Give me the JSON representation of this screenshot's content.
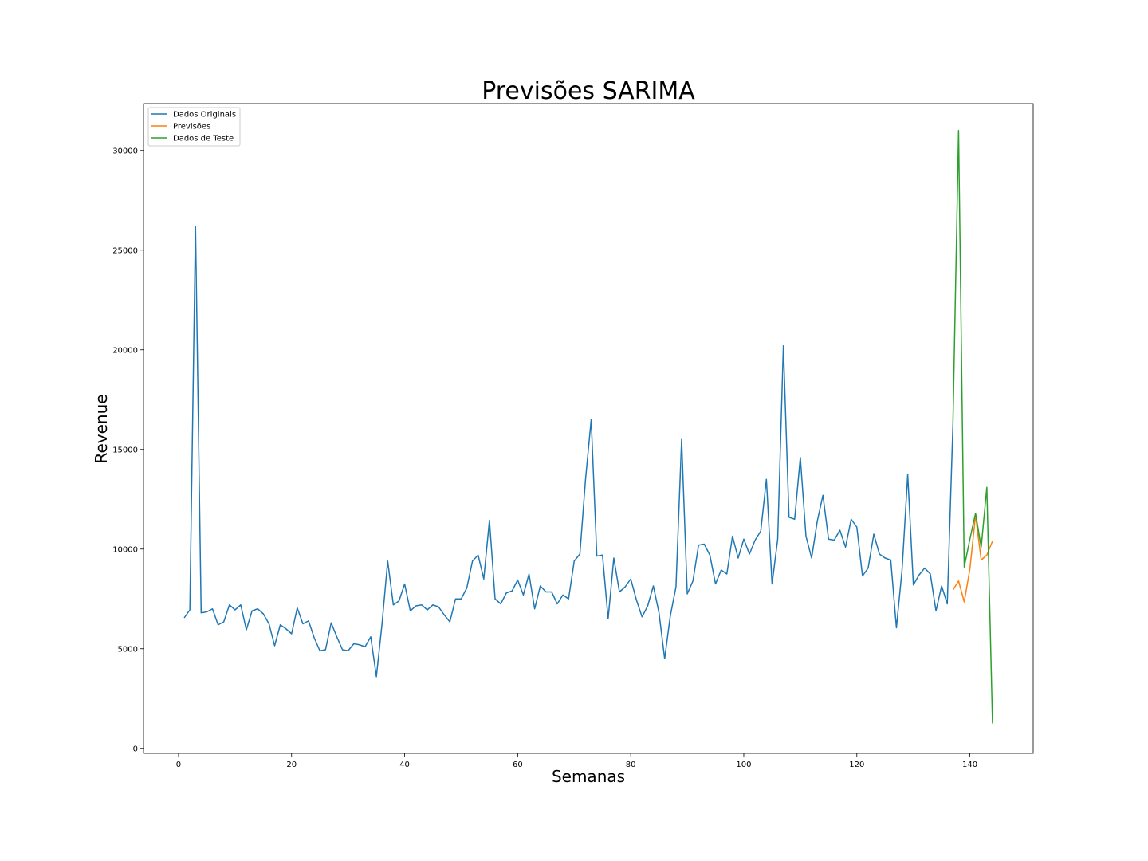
{
  "chart_data": {
    "type": "line",
    "title": "Previsões SARIMA",
    "xlabel": "Semanas",
    "ylabel": "Revenue",
    "xlim": [
      -6.2,
      151.2
    ],
    "ylim": [
      -250,
      32350
    ],
    "xticks": [
      0,
      20,
      40,
      60,
      80,
      100,
      120,
      140
    ],
    "yticks": [
      0,
      5000,
      10000,
      15000,
      20000,
      25000,
      30000
    ],
    "grid": false,
    "legend_position": "top-left",
    "series": [
      {
        "name": "Dados Originais",
        "color": "#1f77b4",
        "x": [
          1,
          2,
          3,
          4,
          5,
          6,
          7,
          8,
          9,
          10,
          11,
          12,
          13,
          14,
          15,
          16,
          17,
          18,
          19,
          20,
          21,
          22,
          23,
          24,
          25,
          26,
          27,
          28,
          29,
          30,
          31,
          32,
          33,
          34,
          35,
          36,
          37,
          38,
          39,
          40,
          41,
          42,
          43,
          44,
          45,
          46,
          47,
          48,
          49,
          50,
          51,
          52,
          53,
          54,
          55,
          56,
          57,
          58,
          59,
          60,
          61,
          62,
          63,
          64,
          65,
          66,
          67,
          68,
          69,
          70,
          71,
          72,
          73,
          74,
          75,
          76,
          77,
          78,
          79,
          80,
          81,
          82,
          83,
          84,
          85,
          86,
          87,
          88,
          89,
          90,
          91,
          92,
          93,
          94,
          95,
          96,
          97,
          98,
          99,
          100,
          101,
          102,
          103,
          104,
          105,
          106,
          107,
          108,
          109,
          110,
          111,
          112,
          113,
          114,
          115,
          116,
          117,
          118,
          119,
          120,
          121,
          122,
          123,
          124,
          125,
          126,
          127,
          128,
          129,
          130,
          131,
          132,
          133,
          134,
          135,
          136,
          137
        ],
        "y": [
          6550,
          6950,
          26200,
          6800,
          6850,
          7000,
          6200,
          6350,
          7200,
          6950,
          7200,
          5950,
          6900,
          7000,
          6750,
          6250,
          5150,
          6200,
          6000,
          5750,
          7050,
          6250,
          6400,
          5550,
          4900,
          4950,
          6300,
          5600,
          4950,
          4900,
          5250,
          5200,
          5100,
          5600,
          3600,
          6250,
          9400,
          7200,
          7400,
          8250,
          6900,
          7150,
          7200,
          6950,
          7200,
          7100,
          6700,
          6350,
          7500,
          7500,
          8050,
          9400,
          9700,
          8500,
          11450,
          7500,
          7250,
          7800,
          7900,
          8450,
          7700,
          8750,
          7000,
          8150,
          7850,
          7850,
          7250,
          7700,
          7500,
          9400,
          9750,
          13500,
          16500,
          9650,
          9700,
          6500,
          9550,
          7850,
          8100,
          8500,
          7450,
          6600,
          7150,
          8150,
          6800,
          4500,
          6650,
          8100,
          15500,
          7750,
          8400,
          10200,
          10250,
          9700,
          8250,
          8950,
          8750,
          10650,
          9550,
          10500,
          9750,
          10450,
          10900,
          13500,
          8250,
          10500,
          20200,
          11600,
          11500,
          14600,
          10650,
          9550,
          11400,
          12700,
          10500,
          10450,
          10950,
          10100,
          11500,
          11100,
          8650,
          9050,
          10750,
          9750,
          9550,
          9450,
          6050,
          8950,
          13750,
          8200,
          8700,
          9050,
          8750,
          6900,
          8150,
          7250,
          16250
        ]
      },
      {
        "name": "Previsões",
        "color": "#ff7f0e",
        "x": [
          137,
          138,
          139,
          140,
          141,
          142,
          143,
          144
        ],
        "y": [
          7950,
          8400,
          7350,
          9000,
          11700,
          9450,
          9700,
          10400
        ]
      },
      {
        "name": "Dados de Teste",
        "color": "#2ca02c",
        "x": [
          137,
          138,
          139,
          140,
          141,
          142,
          143,
          144
        ],
        "y": [
          16250,
          31000,
          9100,
          10500,
          11800,
          10100,
          13100,
          1250
        ]
      }
    ]
  }
}
